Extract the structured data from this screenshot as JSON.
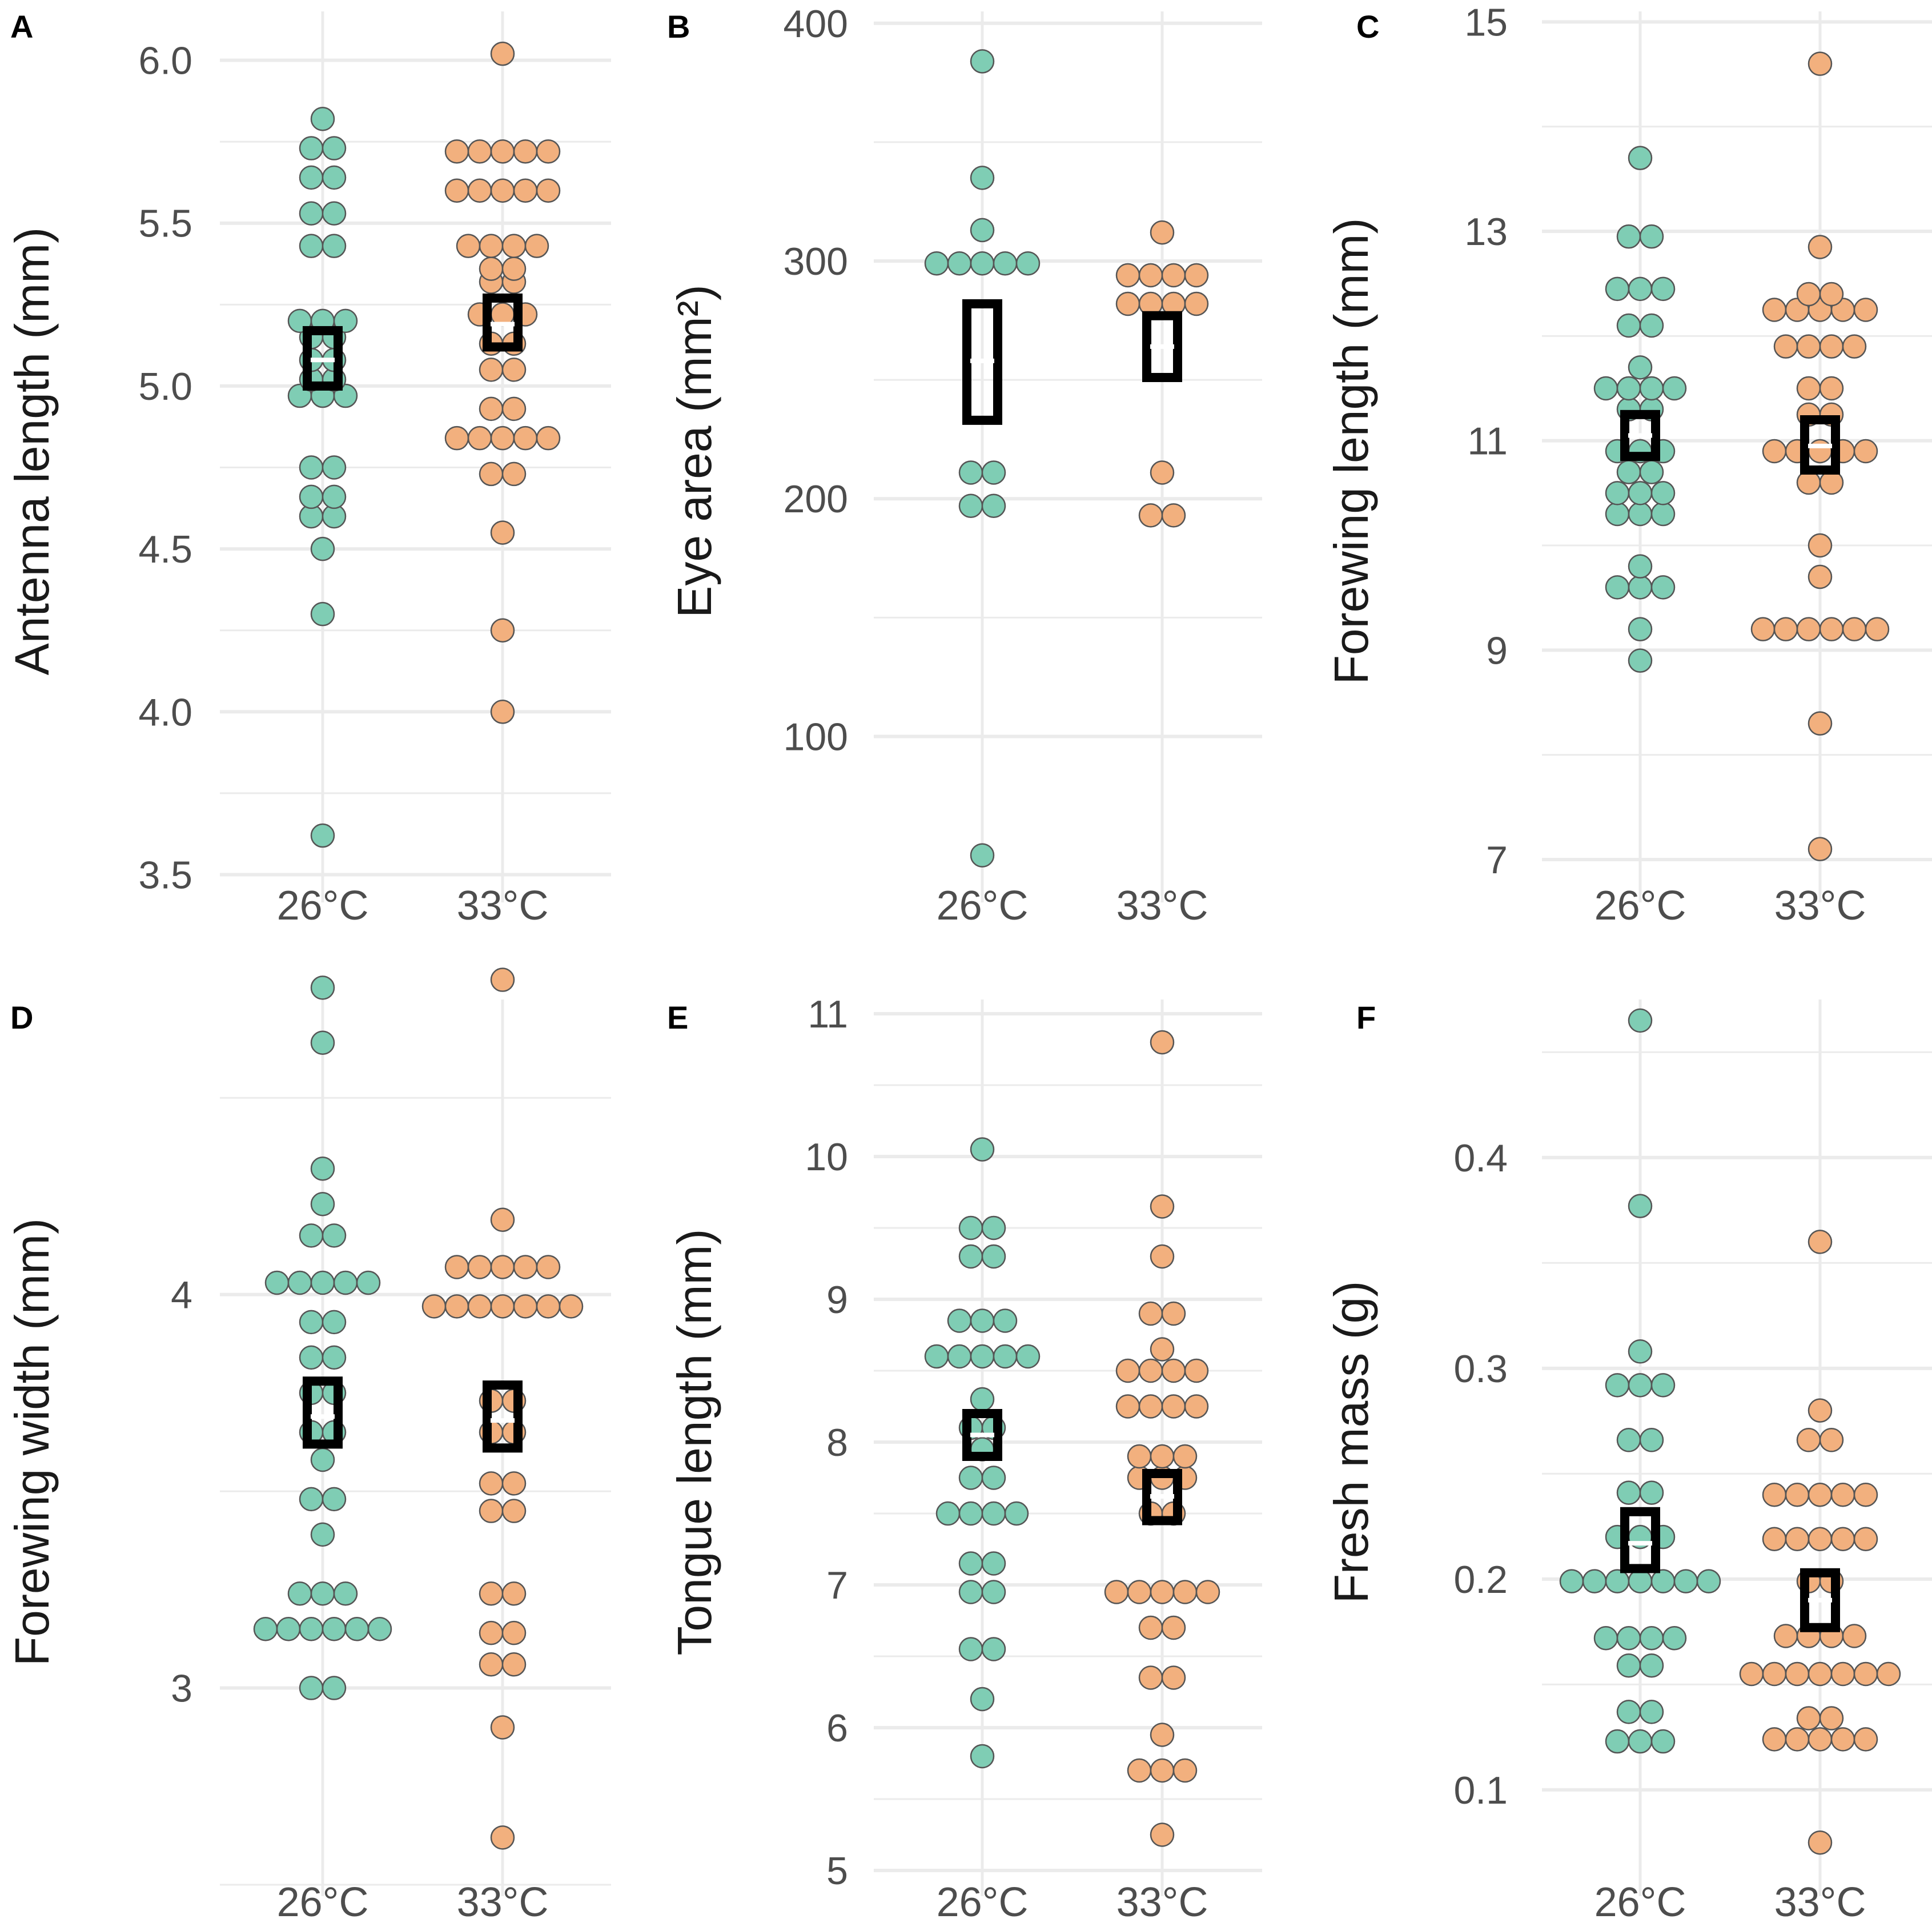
{
  "figure": {
    "colors": {
      "group_26": "#7fcdb4",
      "group_33": "#f2b07e",
      "point_stroke": "#555555",
      "grid": "#ebebeb",
      "mean_box": "#000000",
      "background": "#ffffff"
    }
  },
  "chart_data": [
    {
      "type": "scatter",
      "panel": "A",
      "ylabel": "Antenna length  (mm)",
      "categories": [
        "26°C",
        "33°C"
      ],
      "ylim": [
        3.45,
        6.15
      ],
      "major_ticks": [
        3.5,
        4.0,
        4.5,
        5.0,
        5.5,
        6.0
      ],
      "tick_labels": [
        "3.5",
        "4.0",
        "4.5",
        "5.0",
        "5.5",
        "6.0"
      ],
      "minor_ticks": [
        3.75,
        4.25,
        4.75,
        5.25,
        5.75
      ],
      "series": [
        {
          "name": "26°C",
          "rows": [
            [
              3.62,
              1
            ],
            [
              4.3,
              1
            ],
            [
              4.5,
              1
            ],
            [
              4.6,
              2
            ],
            [
              4.66,
              2
            ],
            [
              4.75,
              2
            ],
            [
              4.97,
              3
            ],
            [
              5.02,
              2
            ],
            [
              5.08,
              2
            ],
            [
              5.15,
              2
            ],
            [
              5.2,
              3
            ],
            [
              5.43,
              2
            ],
            [
              5.53,
              2
            ],
            [
              5.64,
              2
            ],
            [
              5.73,
              2
            ],
            [
              5.82,
              1
            ]
          ]
        },
        {
          "name": "33°C",
          "rows": [
            [
              4.0,
              1
            ],
            [
              4.25,
              1
            ],
            [
              4.55,
              1
            ],
            [
              4.73,
              2
            ],
            [
              4.84,
              5
            ],
            [
              4.93,
              2
            ],
            [
              5.05,
              2
            ],
            [
              5.13,
              2
            ],
            [
              5.22,
              3
            ],
            [
              5.32,
              2
            ],
            [
              5.36,
              2
            ],
            [
              5.43,
              4
            ],
            [
              5.6,
              5
            ],
            [
              5.72,
              5
            ],
            [
              6.02,
              1
            ]
          ]
        }
      ],
      "mean_box": [
        {
          "group": "26°C",
          "mean": 5.08,
          "lower": 5.0,
          "upper": 5.17
        },
        {
          "group": "33°C",
          "mean": 5.19,
          "lower": 5.12,
          "upper": 5.27
        }
      ]
    },
    {
      "type": "scatter",
      "panel": "B",
      "ylabel": "Eye area  (mm²)",
      "categories": [
        "26°C",
        "33°C"
      ],
      "ylim": [
        35,
        405
      ],
      "major_ticks": [
        100,
        200,
        300,
        400
      ],
      "tick_labels": [
        "100",
        "200",
        "300",
        "400"
      ],
      "minor_ticks": [
        150,
        250,
        350
      ],
      "series": [
        {
          "name": "26°C",
          "rows": [
            [
              50,
              1
            ],
            [
              197,
              2
            ],
            [
              211,
              2
            ],
            [
              299,
              5
            ],
            [
              313,
              1
            ],
            [
              335,
              1
            ],
            [
              384,
              1
            ]
          ]
        },
        {
          "name": "33°C",
          "rows": [
            [
              193,
              2
            ],
            [
              211,
              1
            ],
            [
              282,
              4
            ],
            [
              294,
              4
            ],
            [
              312,
              1
            ]
          ]
        }
      ],
      "mean_box": [
        {
          "group": "26°C",
          "mean": 258,
          "lower": 233,
          "upper": 282
        },
        {
          "group": "33°C",
          "mean": 264,
          "lower": 251,
          "upper": 277
        }
      ]
    },
    {
      "type": "scatter",
      "panel": "C",
      "ylabel": "Forewing  length  (mm)",
      "categories": [
        "26°C",
        "33°C"
      ],
      "ylim": [
        6.7,
        15.1
      ],
      "major_ticks": [
        7,
        9,
        11,
        13,
        15
      ],
      "tick_labels": [
        "7",
        "9",
        "11",
        "13",
        "15"
      ],
      "minor_ticks": [
        8,
        10,
        12,
        14
      ],
      "series": [
        {
          "name": "26°C",
          "rows": [
            [
              8.9,
              1
            ],
            [
              9.2,
              1
            ],
            [
              9.6,
              3
            ],
            [
              9.8,
              1
            ],
            [
              10.3,
              3
            ],
            [
              10.5,
              3
            ],
            [
              10.7,
              2
            ],
            [
              10.9,
              3
            ],
            [
              11.3,
              2
            ],
            [
              11.5,
              4
            ],
            [
              11.7,
              1
            ],
            [
              12.1,
              2
            ],
            [
              12.45,
              3
            ],
            [
              12.95,
              2
            ],
            [
              13.7,
              1
            ]
          ]
        },
        {
          "name": "33°C",
          "rows": [
            [
              7.1,
              1
            ],
            [
              8.3,
              1
            ],
            [
              9.2,
              6
            ],
            [
              9.7,
              1
            ],
            [
              10.0,
              1
            ],
            [
              10.6,
              2
            ],
            [
              10.9,
              5
            ],
            [
              11.25,
              2
            ],
            [
              11.5,
              2
            ],
            [
              11.9,
              4
            ],
            [
              12.25,
              5
            ],
            [
              12.4,
              2
            ],
            [
              12.85,
              1
            ],
            [
              14.6,
              1
            ]
          ]
        }
      ],
      "mean_box": [
        {
          "group": "26°C",
          "mean": 11.05,
          "lower": 10.85,
          "upper": 11.25
        },
        {
          "group": "33°C",
          "mean": 10.95,
          "lower": 10.72,
          "upper": 11.2
        }
      ]
    },
    {
      "type": "scatter",
      "panel": "D",
      "ylabel": "Forewing  width  (mm)",
      "categories": [
        "26°C",
        "33°C"
      ],
      "ylim": [
        2.5,
        4.75
      ],
      "major_ticks": [
        3,
        4
      ],
      "tick_labels": [
        "3",
        "4"
      ],
      "minor_ticks": [
        2.5,
        3.5,
        4.5
      ],
      "series": [
        {
          "name": "26°C",
          "rows": [
            [
              3.0,
              2
            ],
            [
              3.15,
              6
            ],
            [
              3.24,
              3
            ],
            [
              3.39,
              1
            ],
            [
              3.48,
              2
            ],
            [
              3.58,
              1
            ],
            [
              3.65,
              2
            ],
            [
              3.75,
              2
            ],
            [
              3.84,
              2
            ],
            [
              3.93,
              2
            ],
            [
              4.03,
              5
            ],
            [
              4.15,
              2
            ],
            [
              4.23,
              1
            ],
            [
              4.32,
              1
            ],
            [
              4.64,
              1
            ],
            [
              4.78,
              1
            ]
          ]
        },
        {
          "name": "33°C",
          "rows": [
            [
              2.62,
              1
            ],
            [
              2.9,
              1
            ],
            [
              3.06,
              2
            ],
            [
              3.14,
              2
            ],
            [
              3.24,
              2
            ],
            [
              3.45,
              2
            ],
            [
              3.52,
              2
            ],
            [
              3.65,
              2
            ],
            [
              3.73,
              2
            ],
            [
              3.97,
              7
            ],
            [
              4.07,
              5
            ],
            [
              4.19,
              1
            ],
            [
              4.8,
              1
            ]
          ]
        }
      ],
      "mean_box": [
        {
          "group": "26°C",
          "mean": 3.69,
          "lower": 3.62,
          "upper": 3.78
        },
        {
          "group": "33°C",
          "mean": 3.68,
          "lower": 3.61,
          "upper": 3.77
        }
      ]
    },
    {
      "type": "scatter",
      "panel": "E",
      "ylabel": "Tongue  length  (mm)",
      "categories": [
        "26°C",
        "33°C"
      ],
      "ylim": [
        4.9,
        11.1
      ],
      "major_ticks": [
        5,
        6,
        7,
        8,
        9,
        10,
        11
      ],
      "tick_labels": [
        "5",
        "6",
        "7",
        "8",
        "9",
        "10",
        "11"
      ],
      "minor_ticks": [
        5.5,
        6.5,
        7.5,
        8.5,
        9.5,
        10.5
      ],
      "series": [
        {
          "name": "26°C",
          "rows": [
            [
              5.8,
              1
            ],
            [
              6.2,
              1
            ],
            [
              6.55,
              2
            ],
            [
              6.95,
              2
            ],
            [
              7.15,
              2
            ],
            [
              7.5,
              4
            ],
            [
              7.75,
              2
            ],
            [
              7.95,
              1
            ],
            [
              8.1,
              2
            ],
            [
              8.3,
              1
            ],
            [
              8.6,
              5
            ],
            [
              8.85,
              3
            ],
            [
              9.3,
              2
            ],
            [
              9.5,
              2
            ],
            [
              10.05,
              1
            ]
          ]
        },
        {
          "name": "33°C",
          "rows": [
            [
              5.25,
              1
            ],
            [
              5.7,
              3
            ],
            [
              5.95,
              1
            ],
            [
              6.35,
              2
            ],
            [
              6.7,
              2
            ],
            [
              6.95,
              5
            ],
            [
              7.5,
              2
            ],
            [
              7.75,
              3
            ],
            [
              7.9,
              3
            ],
            [
              8.25,
              4
            ],
            [
              8.5,
              4
            ],
            [
              8.65,
              1
            ],
            [
              8.9,
              2
            ],
            [
              9.3,
              1
            ],
            [
              9.65,
              1
            ],
            [
              10.8,
              1
            ]
          ]
        }
      ],
      "mean_box": [
        {
          "group": "26°C",
          "mean": 8.05,
          "lower": 7.9,
          "upper": 8.2
        },
        {
          "group": "33°C",
          "mean": 7.62,
          "lower": 7.45,
          "upper": 7.78
        }
      ]
    },
    {
      "type": "scatter",
      "panel": "F",
      "ylabel": "Fresh  mass  (g)",
      "categories": [
        "26°C",
        "33°C"
      ],
      "ylim": [
        0.055,
        0.475
      ],
      "major_ticks": [
        0.1,
        0.2,
        0.3,
        0.4
      ],
      "tick_labels": [
        "0.1",
        "0.2",
        "0.3",
        "0.4"
      ],
      "minor_ticks": [
        0.15,
        0.25,
        0.35,
        0.45
      ],
      "series": [
        {
          "name": "26°C",
          "rows": [
            [
              0.123,
              3
            ],
            [
              0.137,
              2
            ],
            [
              0.159,
              2
            ],
            [
              0.172,
              4
            ],
            [
              0.199,
              7
            ],
            [
              0.22,
              3
            ],
            [
              0.241,
              2
            ],
            [
              0.266,
              2
            ],
            [
              0.292,
              3
            ],
            [
              0.308,
              1
            ],
            [
              0.377,
              1
            ],
            [
              0.465,
              1
            ]
          ]
        },
        {
          "name": "33°C",
          "rows": [
            [
              0.075,
              1
            ],
            [
              0.124,
              5
            ],
            [
              0.134,
              2
            ],
            [
              0.155,
              7
            ],
            [
              0.173,
              4
            ],
            [
              0.199,
              2
            ],
            [
              0.219,
              5
            ],
            [
              0.24,
              5
            ],
            [
              0.266,
              2
            ],
            [
              0.28,
              1
            ],
            [
              0.36,
              1
            ]
          ]
        }
      ],
      "mean_box": [
        {
          "group": "26°C",
          "mean": 0.217,
          "lower": 0.205,
          "upper": 0.232
        },
        {
          "group": "33°C",
          "mean": 0.19,
          "lower": 0.177,
          "upper": 0.203
        }
      ]
    }
  ]
}
